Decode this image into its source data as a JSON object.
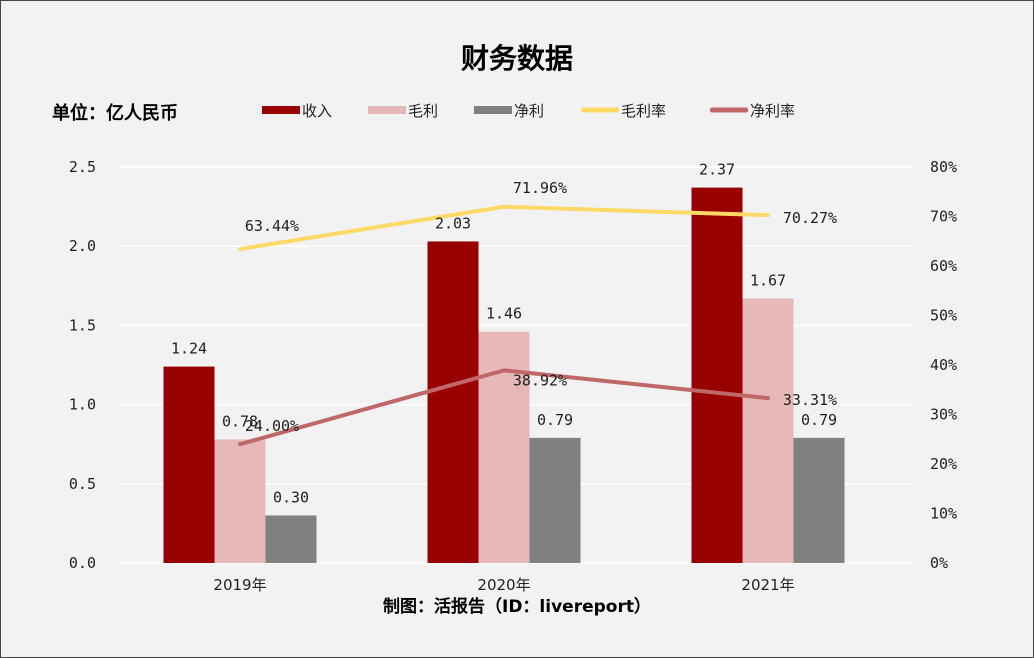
{
  "chart_data": {
    "type": "bar",
    "title": "财务数据",
    "unit_label": "单位：亿人民币",
    "footer": "制图：活报告（ID：livereport）",
    "categories": [
      "2019年",
      "2020年",
      "2021年"
    ],
    "left_axis": {
      "range": [
        0,
        2.5
      ],
      "ticks": [
        "0.0",
        "0.5",
        "1.0",
        "1.5",
        "2.0",
        "2.5"
      ]
    },
    "right_axis": {
      "range": [
        0,
        80
      ],
      "ticks": [
        "0%",
        "10%",
        "20%",
        "30%",
        "40%",
        "50%",
        "60%",
        "70%",
        "80%"
      ]
    },
    "grid": true,
    "legend_position": "top",
    "bar_series": [
      {
        "name": "收入",
        "values": [
          1.24,
          2.03,
          2.37
        ],
        "labels": [
          "1.24",
          "2.03",
          "2.37"
        ],
        "color": "#990000"
      },
      {
        "name": "毛利",
        "values": [
          0.78,
          1.46,
          1.67
        ],
        "labels": [
          "0.78",
          "1.46",
          "1.67"
        ],
        "color": "#e6b8b7"
      },
      {
        "name": "净利",
        "values": [
          0.3,
          0.79,
          0.79
        ],
        "labels": [
          "0.30",
          "0.79",
          "0.79"
        ],
        "color": "#808080"
      }
    ],
    "line_series": [
      {
        "name": "毛利率",
        "values": [
          63.44,
          71.96,
          70.27
        ],
        "labels": [
          "63.44%",
          "71.96%",
          "70.27%"
        ],
        "color": "#ffd966",
        "axis": "right"
      },
      {
        "name": "净利率",
        "values": [
          24.0,
          38.92,
          33.31
        ],
        "labels": [
          "24.00%",
          "38.92%",
          "33.31%"
        ],
        "color": "#c0676a",
        "axis": "right"
      }
    ]
  }
}
